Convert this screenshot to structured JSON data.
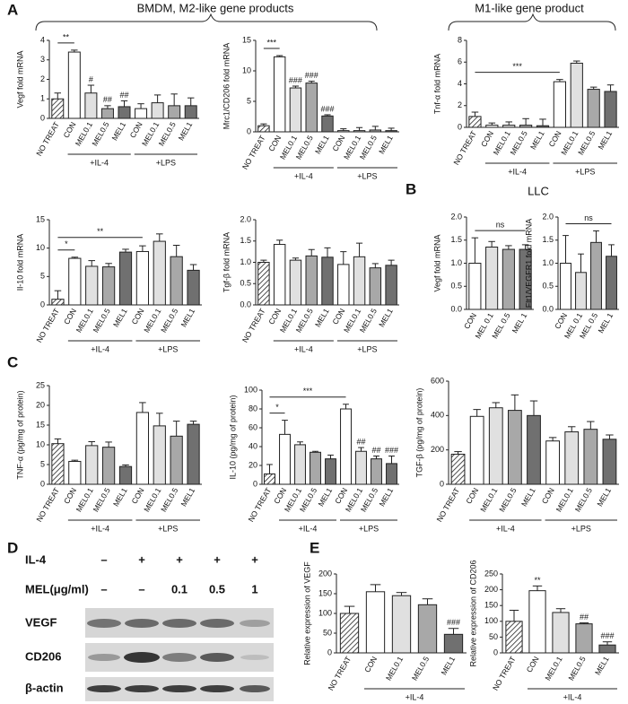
{
  "panel_labels": [
    "A",
    "B",
    "C",
    "D",
    "E"
  ],
  "headings": [
    "BMDM, M2-like gene products",
    "M1-like gene product",
    "LLC"
  ],
  "western_blot": {
    "conditions": [
      {
        "name": "IL-4",
        "values": [
          "–",
          "+",
          "+",
          "+",
          "+"
        ]
      },
      {
        "name": "MEL(μg/ml)",
        "values": [
          "–",
          "–",
          "0.1",
          "0.5",
          "1"
        ]
      }
    ],
    "bands": [
      "VEGF",
      "CD206",
      "β-actin"
    ]
  },
  "chart_data": [
    {
      "type": "bar",
      "ylabel": "Vegf fold mRNA",
      "categories": [
        "NO TREAT",
        "CON",
        "MEL0.1",
        "MEL0.5",
        "MEL1",
        "CON",
        "MEL0.1",
        "MEL0.5",
        "MEL1"
      ],
      "values": [
        1.0,
        3.4,
        1.3,
        0.5,
        0.6,
        0.5,
        0.8,
        0.65,
        0.65
      ],
      "errors": [
        0.3,
        0.1,
        0.4,
        0.15,
        0.3,
        0.25,
        0.4,
        0.6,
        0.4
      ],
      "colors": [
        "hatch",
        "#ffffff",
        "#e0e0e0",
        "#a8a8a8",
        "#707070",
        "#ffffff",
        "#e0e0e0",
        "#a8a8a8",
        "#707070"
      ],
      "ylim": [
        0,
        4
      ],
      "yticks": [
        0,
        1,
        2,
        3,
        4
      ],
      "group": [
        null,
        "+IL-4",
        "+IL-4",
        "+IL-4",
        "+IL-4",
        "+LPS",
        "+LPS",
        "+LPS",
        "+LPS"
      ],
      "annotations": [
        null,
        null,
        "#",
        "##",
        "##",
        null,
        null,
        null,
        null
      ],
      "bracket_labels": [
        null,
        "**",
        null,
        null,
        null,
        null,
        null,
        null,
        null
      ]
    },
    {
      "type": "bar",
      "ylabel": "Mrc1/CD206 fold mRNA",
      "categories": [
        "NO TREAT",
        "CON",
        "MEL0.1",
        "MEL0.5",
        "MEL1",
        "CON",
        "MEL0.1",
        "MEL0.5",
        "MEL1"
      ],
      "values": [
        1.0,
        12.3,
        7.2,
        8.0,
        2.6,
        0.2,
        0.2,
        0.3,
        0.2
      ],
      "errors": [
        0.3,
        0.2,
        0.3,
        0.3,
        0.2,
        0.3,
        0.5,
        0.6,
        0.4
      ],
      "colors": [
        "hatch",
        "#ffffff",
        "#e0e0e0",
        "#a8a8a8",
        "#707070",
        "#ffffff",
        "#e0e0e0",
        "#a8a8a8",
        "#707070"
      ],
      "ylim": [
        0,
        15
      ],
      "yticks": [
        0,
        5,
        10,
        15
      ],
      "group": [
        null,
        "+IL-4",
        "+IL-4",
        "+IL-4",
        "+IL-4",
        "+LPS",
        "+LPS",
        "+LPS",
        "+LPS"
      ],
      "annotations": [
        null,
        null,
        "###",
        "###",
        "###",
        null,
        null,
        null,
        null
      ],
      "bracket_labels": [
        null,
        "***",
        null,
        null,
        null,
        null,
        null,
        null,
        null
      ]
    },
    {
      "type": "bar",
      "ylabel": "Tnf-α fold mRNA",
      "categories": [
        "NO TREAT",
        "CON",
        "MEL0.1",
        "MEL0.5",
        "MEL1",
        "CON",
        "MEL0.1",
        "MEL0.5",
        "MEL1"
      ],
      "values": [
        1.0,
        0.2,
        0.2,
        0.2,
        0.15,
        4.2,
        5.9,
        3.5,
        3.3
      ],
      "errors": [
        0.4,
        0.2,
        0.3,
        0.6,
        0.6,
        0.2,
        0.2,
        0.2,
        0.6
      ],
      "colors": [
        "hatch",
        "#ffffff",
        "#e0e0e0",
        "#a8a8a8",
        "#707070",
        "#ffffff",
        "#e0e0e0",
        "#a8a8a8",
        "#707070"
      ],
      "ylim": [
        0,
        8
      ],
      "yticks": [
        0,
        2,
        4,
        6,
        8
      ],
      "group": [
        null,
        "+IL-4",
        "+IL-4",
        "+IL-4",
        "+IL-4",
        "+LPS",
        "+LPS",
        "+LPS",
        "+LPS"
      ],
      "bracket_labels": [
        null,
        null,
        null,
        null,
        null,
        "***",
        null,
        null,
        null
      ]
    },
    {
      "type": "bar",
      "ylabel": "Il-10 fold mRNA",
      "categories": [
        "NO TREAT",
        "CON",
        "MEL0.1",
        "MEL0.5",
        "MEL1",
        "CON",
        "MEL0.1",
        "MEL0.5",
        "MEL1"
      ],
      "values": [
        1.0,
        8.2,
        6.8,
        6.7,
        9.3,
        9.4,
        11.2,
        8.5,
        6.1
      ],
      "errors": [
        1.5,
        0.2,
        1.0,
        0.6,
        0.5,
        1.0,
        1.3,
        2.0,
        1.0
      ],
      "colors": [
        "hatch",
        "#ffffff",
        "#e0e0e0",
        "#a8a8a8",
        "#707070",
        "#ffffff",
        "#e0e0e0",
        "#a8a8a8",
        "#707070"
      ],
      "ylim": [
        0,
        15
      ],
      "yticks": [
        0,
        5,
        10,
        15
      ],
      "group": [
        null,
        "+IL-4",
        "+IL-4",
        "+IL-4",
        "+IL-4",
        "+LPS",
        "+LPS",
        "+LPS",
        "+LPS"
      ],
      "bracket_labels": [
        null,
        "*",
        null,
        null,
        null,
        "**",
        null,
        null,
        null
      ]
    },
    {
      "type": "bar",
      "ylabel": "Tgf-β fold mRNA",
      "categories": [
        "NO TREAT",
        "CON",
        "MEL0.1",
        "MEL0.5",
        "MEL1",
        "CON",
        "MEL0.1",
        "MEL0.5",
        "MEL1"
      ],
      "values": [
        1.0,
        1.42,
        1.05,
        1.15,
        1.12,
        0.95,
        1.13,
        0.87,
        0.93
      ],
      "errors": [
        0.05,
        0.1,
        0.05,
        0.15,
        0.22,
        0.3,
        0.32,
        0.1,
        0.12
      ],
      "colors": [
        "hatch",
        "#ffffff",
        "#e0e0e0",
        "#a8a8a8",
        "#707070",
        "#ffffff",
        "#e0e0e0",
        "#a8a8a8",
        "#707070"
      ],
      "ylim": [
        0,
        2
      ],
      "yticks": [
        {
          "value": 0,
          "label": "0.0"
        },
        0.5,
        {
          "value": 1,
          "label": "1.0"
        },
        1.5,
        {
          "value": 2,
          "label": "2.0"
        }
      ],
      "group": [
        null,
        "+IL-4",
        "+IL-4",
        "+IL-4",
        "+IL-4",
        "+LPS",
        "+LPS",
        "+LPS",
        "+LPS"
      ]
    },
    {
      "type": "bar",
      "ylabel": "Vegf fold mRNA",
      "categories": [
        "CON",
        "MEL 0.1",
        "MEL 0.5",
        "MEL 1"
      ],
      "values": [
        1.0,
        1.35,
        1.3,
        1.3
      ],
      "errors": [
        0.55,
        0.12,
        0.08,
        0.1
      ],
      "colors": [
        "#ffffff",
        "#e0e0e0",
        "#a8a8a8",
        "#707070"
      ],
      "ylim": [
        0,
        2
      ],
      "yticks": [
        {
          "value": 0,
          "label": "0.0"
        },
        0.5,
        {
          "value": 1,
          "label": "1.0"
        },
        1.5,
        {
          "value": 2,
          "label": "2.0"
        }
      ],
      "bracket_labels": [
        null,
        null,
        null,
        "ns"
      ]
    },
    {
      "type": "bar",
      "ylabel": "Flt1/VEGFR1 fold mRNA",
      "categories": [
        "CON",
        "MEL 0.1",
        "MEL 0.5",
        "MEL 1"
      ],
      "values": [
        1.0,
        0.8,
        1.45,
        1.15
      ],
      "errors": [
        0.6,
        0.4,
        0.25,
        0.25
      ],
      "colors": [
        "#ffffff",
        "#e0e0e0",
        "#a8a8a8",
        "#707070"
      ],
      "ylim": [
        0,
        2
      ],
      "yticks": [
        {
          "value": 0,
          "label": "0.0"
        },
        0.5,
        {
          "value": 1,
          "label": "1.0"
        },
        1.5,
        {
          "value": 2,
          "label": "2.0"
        }
      ],
      "bracket_labels": [
        null,
        null,
        null,
        "ns"
      ]
    },
    {
      "type": "bar",
      "ylabel": "TNF-α (pg/mg of protein)",
      "categories": [
        "NO TREAT",
        "CON",
        "MEL0.1",
        "MEL0.5",
        "MEL1",
        "CON",
        "MEL0.1",
        "MEL0.5",
        "MEL1"
      ],
      "values": [
        10.3,
        5.8,
        9.8,
        9.4,
        4.5,
        18.2,
        14.8,
        12.2,
        15.2
      ],
      "errors": [
        1.2,
        0.3,
        1.0,
        1.3,
        0.4,
        2.5,
        3.2,
        3.8,
        0.8
      ],
      "colors": [
        "hatch",
        "#ffffff",
        "#e0e0e0",
        "#a8a8a8",
        "#707070",
        "#ffffff",
        "#e0e0e0",
        "#a8a8a8",
        "#707070"
      ],
      "ylim": [
        0,
        25
      ],
      "yticks": [
        0,
        5,
        10,
        15,
        20,
        25
      ],
      "group": [
        null,
        "+IL-4",
        "+IL-4",
        "+IL-4",
        "+IL-4",
        "+LPS",
        "+LPS",
        "+LPS",
        "+LPS"
      ]
    },
    {
      "type": "bar",
      "ylabel": "IL-10 (pg/mg of protein)",
      "categories": [
        "NO TREAT",
        "CON",
        "MEL0.1",
        "MEL0.5",
        "MEL1",
        "CON",
        "MEL0.1",
        "MEL0.5",
        "MEL1"
      ],
      "values": [
        11,
        53,
        42,
        34,
        27,
        80,
        35,
        27,
        22
      ],
      "errors": [
        10,
        15,
        3,
        1,
        4,
        5,
        4,
        3,
        8
      ],
      "colors": [
        "hatch",
        "#ffffff",
        "#e0e0e0",
        "#a8a8a8",
        "#707070",
        "#ffffff",
        "#e0e0e0",
        "#a8a8a8",
        "#707070"
      ],
      "ylim": [
        0,
        100
      ],
      "yticks": [
        0,
        20,
        40,
        60,
        80,
        100
      ],
      "group": [
        null,
        "+IL-4",
        "+IL-4",
        "+IL-4",
        "+IL-4",
        "+LPS",
        "+LPS",
        "+LPS",
        "+LPS"
      ],
      "annotations": [
        null,
        null,
        null,
        null,
        null,
        null,
        "##",
        "##",
        "###"
      ],
      "bracket_labels": [
        null,
        "*",
        null,
        null,
        null,
        "***",
        null,
        null,
        null
      ]
    },
    {
      "type": "bar",
      "ylabel": "TGF-β (pg/mg of protein)",
      "categories": [
        "NO TREAT",
        "CON",
        "MEL0.1",
        "MEL0.5",
        "MEL1",
        "CON",
        "MEL0.1",
        "MEL0.5",
        "MEL1"
      ],
      "values": [
        175,
        395,
        445,
        430,
        400,
        252,
        305,
        320,
        262
      ],
      "errors": [
        15,
        40,
        30,
        90,
        85,
        20,
        30,
        45,
        25
      ],
      "colors": [
        "hatch",
        "#ffffff",
        "#e0e0e0",
        "#a8a8a8",
        "#707070",
        "#ffffff",
        "#e0e0e0",
        "#a8a8a8",
        "#707070"
      ],
      "ylim": [
        0,
        600
      ],
      "yticks": [
        0,
        200,
        400,
        600
      ],
      "group": [
        null,
        "+IL-4",
        "+IL-4",
        "+IL-4",
        "+IL-4",
        "+LPS",
        "+LPS",
        "+LPS",
        "+LPS"
      ]
    },
    {
      "type": "bar",
      "ylabel": "Relative expression of VEGF",
      "categories": [
        "NO TREAT",
        "CON",
        "MEL0.1",
        "MEL0.5",
        "MEL1"
      ],
      "values": [
        100,
        155,
        145,
        122,
        47
      ],
      "errors": [
        18,
        18,
        8,
        15,
        15
      ],
      "colors": [
        "hatch",
        "#ffffff",
        "#e0e0e0",
        "#a8a8a8",
        "#707070"
      ],
      "ylim": [
        0,
        200
      ],
      "yticks": [
        0,
        50,
        100,
        150,
        200
      ],
      "group": [
        null,
        "+IL-4",
        "+IL-4",
        "+IL-4",
        "+IL-4"
      ],
      "annotations": [
        null,
        null,
        null,
        null,
        "###"
      ]
    },
    {
      "type": "bar",
      "ylabel": "Relative expression of CD206",
      "categories": [
        "NO TREAT",
        "CON",
        "MEL0.1",
        "MEL0.5",
        "MEL1"
      ],
      "values": [
        100,
        197,
        128,
        92,
        25
      ],
      "errors": [
        35,
        15,
        12,
        3,
        10
      ],
      "colors": [
        "hatch",
        "#ffffff",
        "#e0e0e0",
        "#a8a8a8",
        "#707070"
      ],
      "ylim": [
        0,
        250
      ],
      "yticks": [
        0,
        50,
        100,
        150,
        200,
        250
      ],
      "group": [
        null,
        "+IL-4",
        "+IL-4",
        "+IL-4",
        "+IL-4"
      ],
      "annotations": [
        null,
        "**",
        null,
        "##",
        "###"
      ]
    }
  ]
}
